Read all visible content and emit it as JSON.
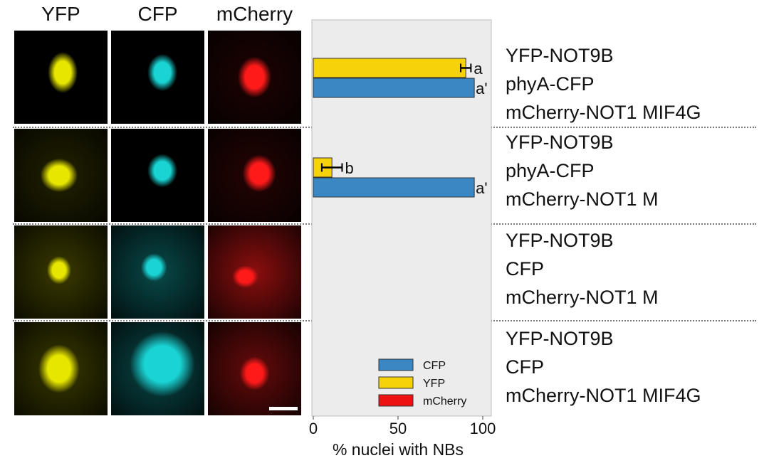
{
  "columns": [
    "YFP",
    "CFP",
    "mCherry"
  ],
  "colors": {
    "yfp_channel": "#e6e600",
    "cfp_channel": "#1ad4d4",
    "mcherry_channel": "#ff1a1a",
    "cfp_bar": "#3a87c4",
    "yfp_bar": "#f5d20a",
    "mcherry_bar": "#ee1111",
    "plot_bg": "#ececec"
  },
  "rows": [
    {
      "lines": [
        "YFP-NOT9B",
        "phyA-CFP",
        "mCherry-NOT1 MIF4G"
      ]
    },
    {
      "lines": [
        "YFP-NOT9B",
        "phyA-CFP",
        "mCherry-NOT1 M"
      ]
    },
    {
      "lines": [
        "YFP-NOT9B",
        "CFP",
        "mCherry-NOT1 M"
      ]
    },
    {
      "lines": [
        "YFP-NOT9B",
        "CFP",
        "mCherry-NOT1 MIF4G"
      ]
    }
  ],
  "chart_data": {
    "type": "bar",
    "orientation": "horizontal",
    "xlabel": "% nuclei with NBs",
    "xlim": [
      0,
      100
    ],
    "xticks": [
      0,
      50,
      100
    ],
    "legend": {
      "position": "bottom-right",
      "entries": [
        "CFP",
        "YFP",
        "mCherry"
      ]
    },
    "groups": [
      {
        "yfp": 90,
        "yfp_err": 3,
        "yfp_label": "a",
        "cfp": 95,
        "cfp_label": "a'"
      },
      {
        "yfp": 11,
        "yfp_err": 6,
        "yfp_label": "b",
        "cfp": 95,
        "cfp_label": "a'"
      },
      {
        "yfp": 0,
        "cfp": 0
      },
      {
        "yfp": 0,
        "cfp": 0
      }
    ]
  }
}
